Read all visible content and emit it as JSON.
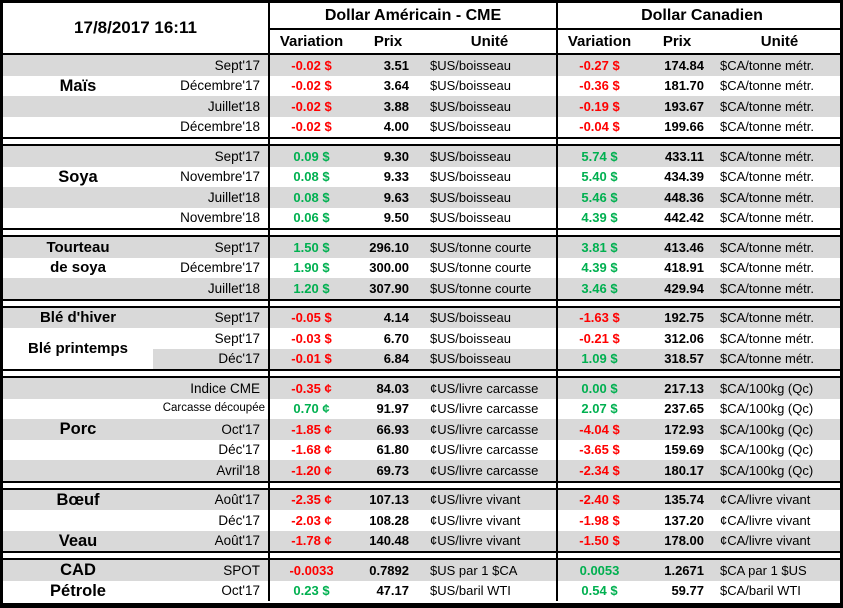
{
  "header": {
    "datetime": "17/8/2017 16:11",
    "us_title": "Dollar Américain - CME",
    "ca_title": "Dollar Canadien",
    "columns": {
      "variation": "Variation",
      "prix": "Prix",
      "unite": "Unité"
    }
  },
  "colors": {
    "positive": "#00B050",
    "negative": "#FF0000",
    "stripe": "#D9D9D9",
    "border": "#000000"
  },
  "groups": [
    {
      "labels": [
        {
          "text": "Maïs",
          "row": 1,
          "span": 1,
          "size": "lg"
        }
      ],
      "rows": [
        {
          "contract": "Sept'17",
          "shade": "g",
          "us_var": "-0.02 $",
          "us_dir": "neg",
          "us_price": "3.51",
          "us_unit": "$US/boisseau",
          "ca_var": "-0.27 $",
          "ca_dir": "neg",
          "ca_price": "174.84",
          "ca_unit": "$CA/tonne métr."
        },
        {
          "contract": "Décembre'17",
          "shade": "w",
          "us_var": "-0.02 $",
          "us_dir": "neg",
          "us_price": "3.64",
          "us_unit": "$US/boisseau",
          "ca_var": "-0.36 $",
          "ca_dir": "neg",
          "ca_price": "181.70",
          "ca_unit": "$CA/tonne métr."
        },
        {
          "contract": "Juillet'18",
          "shade": "g",
          "us_var": "-0.02 $",
          "us_dir": "neg",
          "us_price": "3.88",
          "us_unit": "$US/boisseau",
          "ca_var": "-0.19 $",
          "ca_dir": "neg",
          "ca_price": "193.67",
          "ca_unit": "$CA/tonne métr."
        },
        {
          "contract": "Décembre'18",
          "shade": "w",
          "us_var": "-0.02 $",
          "us_dir": "neg",
          "us_price": "4.00",
          "us_unit": "$US/boisseau",
          "ca_var": "-0.04 $",
          "ca_dir": "neg",
          "ca_price": "199.66",
          "ca_unit": "$CA/tonne métr."
        }
      ]
    },
    {
      "labels": [
        {
          "text": "Soya",
          "row": 1,
          "span": 1,
          "size": "lg"
        }
      ],
      "rows": [
        {
          "contract": "Sept'17",
          "shade": "g",
          "us_var": "0.09 $",
          "us_dir": "pos",
          "us_price": "9.30",
          "us_unit": "$US/boisseau",
          "ca_var": "5.74 $",
          "ca_dir": "pos",
          "ca_price": "433.11",
          "ca_unit": "$CA/tonne métr."
        },
        {
          "contract": "Novembre'17",
          "shade": "w",
          "us_var": "0.08 $",
          "us_dir": "pos",
          "us_price": "9.33",
          "us_unit": "$US/boisseau",
          "ca_var": "5.40 $",
          "ca_dir": "pos",
          "ca_price": "434.39",
          "ca_unit": "$CA/tonne métr."
        },
        {
          "contract": "Juillet'18",
          "shade": "g",
          "us_var": "0.08 $",
          "us_dir": "pos",
          "us_price": "9.63",
          "us_unit": "$US/boisseau",
          "ca_var": "5.46 $",
          "ca_dir": "pos",
          "ca_price": "448.36",
          "ca_unit": "$CA/tonne métr."
        },
        {
          "contract": "Novembre'18",
          "shade": "w",
          "us_var": "0.06 $",
          "us_dir": "pos",
          "us_price": "9.50",
          "us_unit": "$US/boisseau",
          "ca_var": "4.39 $",
          "ca_dir": "pos",
          "ca_price": "442.42",
          "ca_unit": "$CA/tonne métr."
        }
      ]
    },
    {
      "labels": [
        {
          "text": "Tourteau",
          "row": 0,
          "span": 1,
          "size": "smf"
        },
        {
          "text": "de soya",
          "row": 1,
          "span": 1,
          "size": "smf"
        }
      ],
      "rows": [
        {
          "contract": "Sept'17",
          "shade": "g",
          "us_var": "1.50 $",
          "us_dir": "pos",
          "us_price": "296.10",
          "us_unit": "$US/tonne courte",
          "ca_var": "3.81 $",
          "ca_dir": "pos",
          "ca_price": "413.46",
          "ca_unit": "$CA/tonne métr."
        },
        {
          "contract": "Décembre'17",
          "shade": "w",
          "us_var": "1.90 $",
          "us_dir": "pos",
          "us_price": "300.00",
          "us_unit": "$US/tonne courte",
          "ca_var": "4.39 $",
          "ca_dir": "pos",
          "ca_price": "418.91",
          "ca_unit": "$CA/tonne métr."
        },
        {
          "contract": "Juillet'18",
          "shade": "g",
          "us_var": "1.20 $",
          "us_dir": "pos",
          "us_price": "307.90",
          "us_unit": "$US/tonne courte",
          "ca_var": "3.46 $",
          "ca_dir": "pos",
          "ca_price": "429.94",
          "ca_unit": "$CA/tonne métr."
        }
      ]
    },
    {
      "labels": [
        {
          "text": "Blé d'hiver",
          "row": 0,
          "span": 1,
          "size": "smf"
        },
        {
          "text": "Blé printemps",
          "row": 1,
          "span": 2,
          "size": "smf",
          "bg": "w"
        }
      ],
      "rows": [
        {
          "contract": "Sept'17",
          "shade": "g",
          "us_var": "-0.05 $",
          "us_dir": "neg",
          "us_price": "4.14",
          "us_unit": "$US/boisseau",
          "ca_var": "-1.63 $",
          "ca_dir": "neg",
          "ca_price": "192.75",
          "ca_unit": "$CA/tonne métr."
        },
        {
          "contract": "Sept'17",
          "shade": "w",
          "us_var": "-0.03 $",
          "us_dir": "neg",
          "us_price": "6.70",
          "us_unit": "$US/boisseau",
          "ca_var": "-0.21 $",
          "ca_dir": "neg",
          "ca_price": "312.06",
          "ca_unit": "$CA/tonne métr."
        },
        {
          "contract": "Déc'17",
          "shade": "g",
          "us_var": "-0.01 $",
          "us_dir": "neg",
          "us_price": "6.84",
          "us_unit": "$US/boisseau",
          "ca_var": "1.09 $",
          "ca_dir": "pos",
          "ca_price": "318.57",
          "ca_unit": "$CA/tonne métr."
        }
      ]
    },
    {
      "labels": [
        {
          "text": "Porc",
          "row": 2,
          "span": 1,
          "size": "lg"
        }
      ],
      "rows": [
        {
          "contract": "Indice CME",
          "shade": "g",
          "us_var": "-0.35 ¢",
          "us_dir": "neg",
          "us_price": "84.03",
          "us_unit": "¢US/livre carcasse",
          "ca_var": "0.00 $",
          "ca_dir": "pos",
          "ca_price": "217.13",
          "ca_unit": "$CA/100kg (Qc)"
        },
        {
          "contract": "Carcasse découpée",
          "shade": "w",
          "ct_small": true,
          "us_var": "0.70 ¢",
          "us_dir": "pos",
          "us_price": "91.97",
          "us_unit": "¢US/livre carcasse",
          "ca_var": "2.07 $",
          "ca_dir": "pos",
          "ca_price": "237.65",
          "ca_unit": "$CA/100kg (Qc)"
        },
        {
          "contract": "Oct'17",
          "shade": "g",
          "us_var": "-1.85 ¢",
          "us_dir": "neg",
          "us_price": "66.93",
          "us_unit": "¢US/livre carcasse",
          "ca_var": "-4.04 $",
          "ca_dir": "neg",
          "ca_price": "172.93",
          "ca_unit": "$CA/100kg (Qc)"
        },
        {
          "contract": "Déc'17",
          "shade": "w",
          "us_var": "-1.68 ¢",
          "us_dir": "neg",
          "us_price": "61.80",
          "us_unit": "¢US/livre carcasse",
          "ca_var": "-3.65 $",
          "ca_dir": "neg",
          "ca_price": "159.69",
          "ca_unit": "$CA/100kg (Qc)"
        },
        {
          "contract": "Avril'18",
          "shade": "g",
          "us_var": "-1.20 ¢",
          "us_dir": "neg",
          "us_price": "69.73",
          "us_unit": "¢US/livre carcasse",
          "ca_var": "-2.34 $",
          "ca_dir": "neg",
          "ca_price": "180.17",
          "ca_unit": "$CA/100kg (Qc)"
        }
      ]
    },
    {
      "labels": [
        {
          "text": "Bœuf",
          "row": 0,
          "span": 1,
          "size": "lg"
        },
        {
          "text": "Veau",
          "row": 2,
          "span": 1,
          "size": "lg"
        }
      ],
      "rows": [
        {
          "contract": "Août'17",
          "shade": "g",
          "us_var": "-2.35 ¢",
          "us_dir": "neg",
          "us_price": "107.13",
          "us_unit": "¢US/livre vivant",
          "ca_var": "-2.40 $",
          "ca_dir": "neg",
          "ca_price": "135.74",
          "ca_unit": "¢CA/livre vivant"
        },
        {
          "contract": "Déc'17",
          "shade": "w",
          "us_var": "-2.03 ¢",
          "us_dir": "neg",
          "us_price": "108.28",
          "us_unit": "¢US/livre vivant",
          "ca_var": "-1.98 $",
          "ca_dir": "neg",
          "ca_price": "137.20",
          "ca_unit": "¢CA/livre vivant"
        },
        {
          "contract": "Août'17",
          "shade": "g",
          "us_var": "-1.78 ¢",
          "us_dir": "neg",
          "us_price": "140.48",
          "us_unit": "¢US/livre vivant",
          "ca_var": "-1.50 $",
          "ca_dir": "neg",
          "ca_price": "178.00",
          "ca_unit": "¢CA/livre vivant"
        }
      ]
    },
    {
      "labels": [
        {
          "text": "CAD",
          "row": 0,
          "span": 1,
          "size": "lg"
        },
        {
          "text": "Pétrole",
          "row": 1,
          "span": 1,
          "size": "lg"
        }
      ],
      "rows": [
        {
          "contract": "SPOT",
          "shade": "g",
          "us_var": "-0.0033",
          "us_dir": "neg",
          "us_price": "0.7892",
          "us_unit": "$US par 1 $CA",
          "ca_var": "0.0053",
          "ca_dir": "pos",
          "ca_price": "1.2671",
          "ca_unit": "$CA par 1 $US"
        },
        {
          "contract": "Oct'17",
          "shade": "w",
          "us_var": "0.23 $",
          "us_dir": "pos",
          "us_price": "47.17",
          "us_unit": "$US/baril WTI",
          "ca_var": "0.54 $",
          "ca_dir": "pos",
          "ca_price": "59.77",
          "ca_unit": "$CA/baril WTI"
        }
      ]
    }
  ]
}
